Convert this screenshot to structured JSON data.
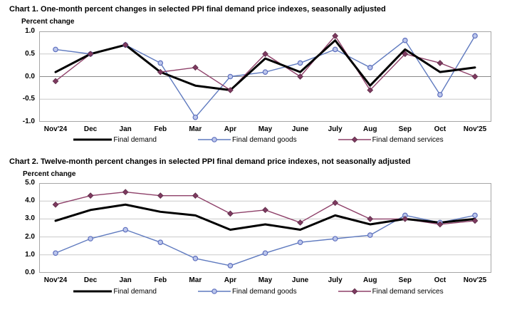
{
  "colors": {
    "final_demand": "#000000",
    "goods_line": "#5F7ABF",
    "goods_marker_fill": "#BCC7EC",
    "goods_marker_stroke": "#5E6FBE",
    "services_line": "#8E4069",
    "services_marker_fill": "#7E3A60",
    "services_marker_stroke": "#5C2B47",
    "gridline": "#C9C9C9",
    "zero_line": "#8A8A8A",
    "plot_border": "#A6A6A6"
  },
  "chart_data": [
    {
      "type": "line",
      "title": "Chart 1. One-month percent changes in selected PPI final demand price indexes, seasonally adjusted",
      "ylabel": "Percent change",
      "categories": [
        "Nov'24",
        "Dec",
        "Jan",
        "Feb",
        "Mar",
        "Apr",
        "May",
        "June",
        "July",
        "Aug",
        "Sep",
        "Oct",
        "Nov'25"
      ],
      "ylim": [
        -1.0,
        1.0
      ],
      "yticks": [
        1.0,
        0.5,
        0.0,
        -0.5,
        -1.0
      ],
      "grid": true,
      "legend_position": "bottom",
      "series": [
        {
          "name": "Final demand",
          "marker": "none",
          "values": [
            0.1,
            0.5,
            0.7,
            0.1,
            -0.2,
            -0.3,
            0.4,
            0.1,
            0.8,
            -0.2,
            0.6,
            0.1,
            0.2
          ]
        },
        {
          "name": "Final demand goods",
          "marker": "circle",
          "values": [
            0.6,
            0.5,
            0.7,
            0.3,
            -0.9,
            0.0,
            0.1,
            0.3,
            0.6,
            0.2,
            0.8,
            -0.4,
            0.9
          ]
        },
        {
          "name": "Final demand services",
          "marker": "diamond",
          "values": [
            -0.1,
            0.5,
            0.7,
            0.1,
            0.2,
            -0.3,
            0.5,
            0.0,
            0.9,
            -0.3,
            0.5,
            0.3,
            0.0
          ]
        }
      ]
    },
    {
      "type": "line",
      "title": "Chart 2. Twelve-month percent changes in selected PPI final demand price indexes, not seasonally adjusted",
      "ylabel": "Percent change",
      "categories": [
        "Nov'24",
        "Dec",
        "Jan",
        "Feb",
        "Mar",
        "Apr",
        "May",
        "June",
        "July",
        "Aug",
        "Sep",
        "Oct",
        "Nov'25"
      ],
      "ylim": [
        0.0,
        5.0
      ],
      "yticks": [
        5.0,
        4.0,
        3.0,
        2.0,
        1.0,
        0.0
      ],
      "grid": true,
      "legend_position": "bottom",
      "series": [
        {
          "name": "Final demand",
          "marker": "none",
          "values": [
            2.9,
            3.5,
            3.8,
            3.4,
            3.2,
            2.4,
            2.7,
            2.4,
            3.2,
            2.7,
            3.0,
            2.8,
            3.0
          ]
        },
        {
          "name": "Final demand goods",
          "marker": "circle",
          "values": [
            1.1,
            1.9,
            2.4,
            1.7,
            0.8,
            0.4,
            1.1,
            1.7,
            1.9,
            2.1,
            3.2,
            2.8,
            3.2
          ]
        },
        {
          "name": "Final demand services",
          "marker": "diamond",
          "values": [
            3.8,
            4.3,
            4.5,
            4.3,
            4.3,
            3.3,
            3.5,
            2.8,
            3.9,
            3.0,
            3.0,
            2.7,
            2.9
          ]
        }
      ]
    }
  ]
}
